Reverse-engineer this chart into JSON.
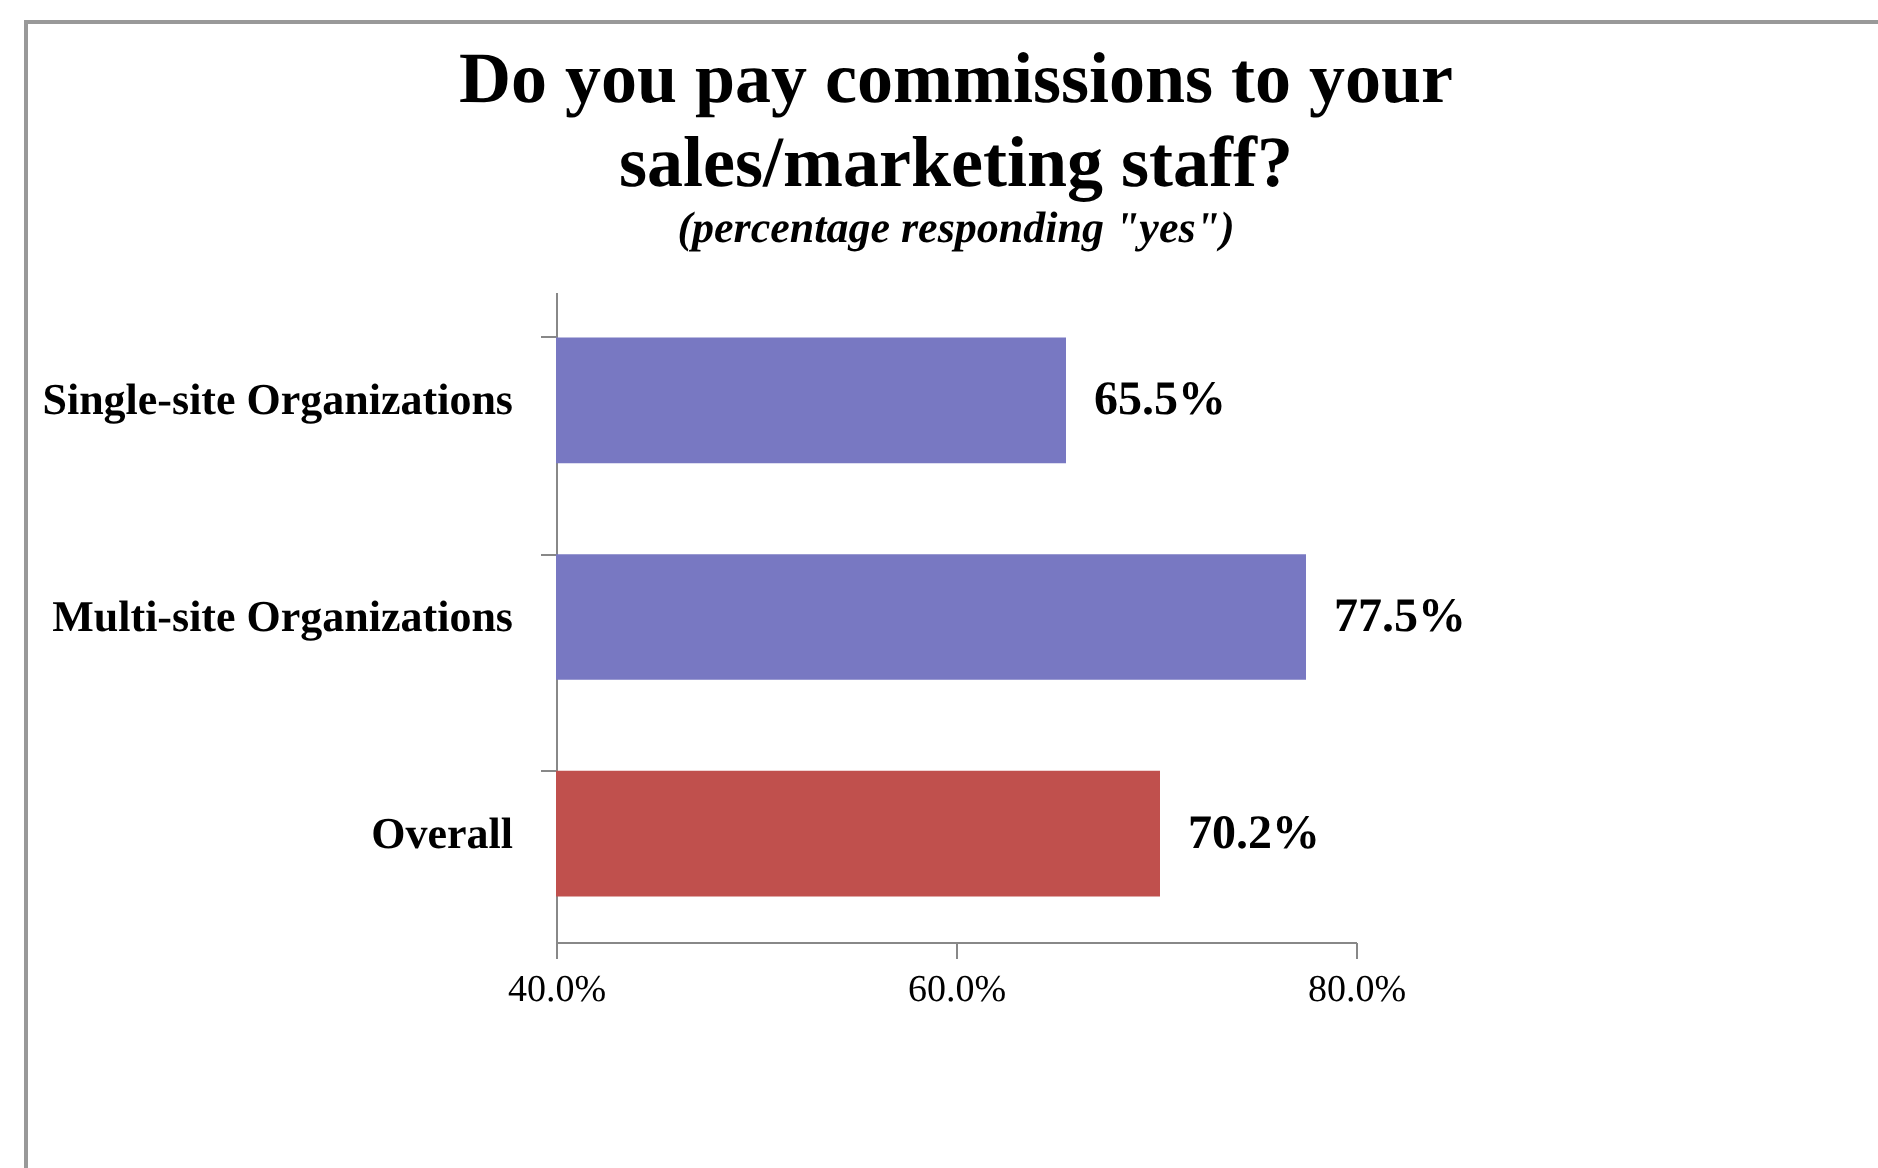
{
  "chart_data": {
    "type": "bar",
    "orientation": "horizontal",
    "title": "Do you pay commissions to your\nsales/marketing staff?",
    "subtitle": "(percentage responding \"yes\")",
    "categories": [
      "Single-site Organizations",
      "Multi-site Organizations",
      "Overall"
    ],
    "values": [
      65.5,
      77.5,
      70.2
    ],
    "colors": [
      "#7878c2",
      "#7878c2",
      "#c0504d"
    ],
    "value_labels": [
      "65.5%",
      "77.5%",
      "70.2%"
    ],
    "xlim": [
      40,
      80
    ],
    "xticks": [
      {
        "value": 40,
        "label": "40.0%"
      },
      {
        "value": 60,
        "label": "60.0%"
      },
      {
        "value": 80,
        "label": "80.0%"
      }
    ],
    "grid": false
  }
}
